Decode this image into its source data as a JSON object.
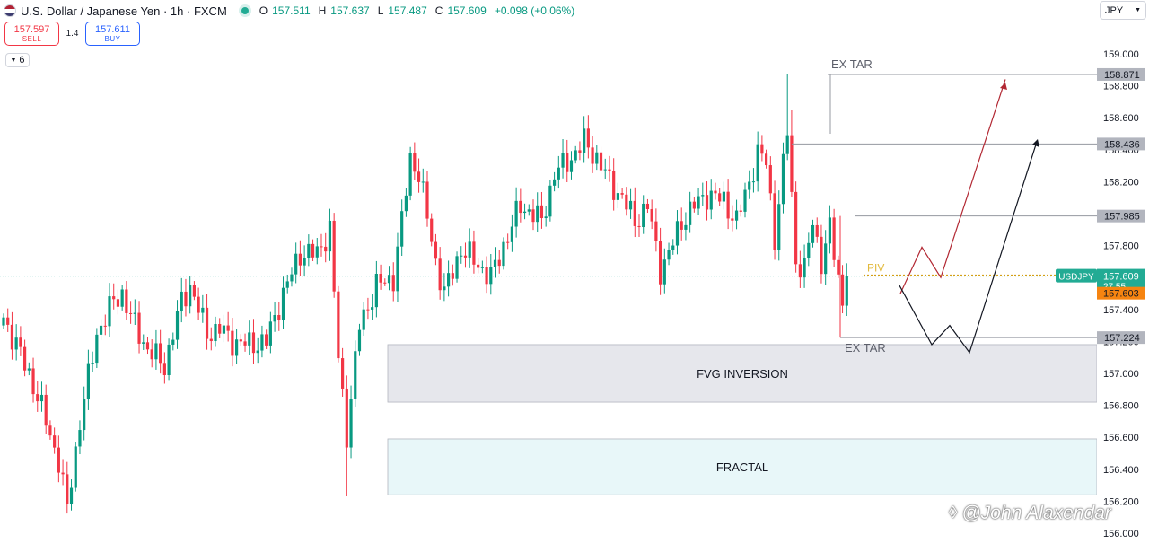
{
  "header": {
    "title": "U.S. Dollar / Japanese Yen · 1h · FXCM",
    "ohlc": [
      {
        "label": "O",
        "value": "157.511"
      },
      {
        "label": "H",
        "value": "157.637"
      },
      {
        "label": "L",
        "value": "157.487"
      },
      {
        "label": "C",
        "value": "157.609"
      },
      {
        "label": "",
        "value": "+0.098 (+0.06%)"
      }
    ]
  },
  "trade": {
    "sell_price": "157.597",
    "sell_label": "SELL",
    "spread": "1.4",
    "buy_price": "157.611",
    "buy_label": "BUY"
  },
  "indicators_toggle": "6",
  "currency_selector": "JPY",
  "watermark": "@John Alaxendar",
  "colors": {
    "up": "#089981",
    "down": "#f23645",
    "price_line": "#22ab94",
    "countdown_label": "#f68410"
  },
  "chart_data": {
    "type": "candlestick",
    "symbol": "USDJPY",
    "timeframe": "1h",
    "ylim": [
      156.0,
      159.2
    ],
    "yticks": [
      "156.000",
      "156.200",
      "156.400",
      "156.600",
      "156.800",
      "157.000",
      "157.200",
      "157.400",
      "157.600",
      "157.800",
      "158.000",
      "158.200",
      "158.400",
      "158.600",
      "158.800",
      "159.000"
    ],
    "last_price": "157.609",
    "countdown": "27:55",
    "countdown_price": "157.603",
    "levels": [
      {
        "price": 158.871,
        "label": "158.871",
        "annotation": "EX TAR"
      },
      {
        "price": 158.436,
        "label": "158.436"
      },
      {
        "price": 157.985,
        "label": "157.985"
      },
      {
        "price": 157.224,
        "label": "157.224",
        "annotation": "EX TAR"
      }
    ],
    "zones": [
      {
        "label": "FVG INVERSION",
        "from": 156.82,
        "to": 157.18,
        "color": "#d1d4dc"
      },
      {
        "label": "FRACTAL",
        "from": 156.24,
        "to": 156.59,
        "color": "#cbeef1"
      }
    ],
    "pivot_label": "PIV",
    "pivot_price": 157.615
  }
}
